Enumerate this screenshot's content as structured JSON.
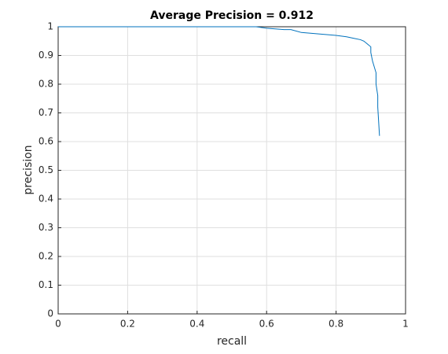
{
  "chart_data": {
    "type": "line",
    "title": "Average Precision = 0.912",
    "x_label": "recall",
    "y_label": "precision",
    "x": [
      0,
      0.05,
      0.1,
      0.2,
      0.3,
      0.4,
      0.5,
      0.57,
      0.6,
      0.65,
      0.67,
      0.7,
      0.75,
      0.8,
      0.83,
      0.85,
      0.87,
      0.88,
      0.89,
      0.9,
      0.9,
      0.905,
      0.91,
      0.915,
      0.915,
      0.92,
      0.92,
      0.925
    ],
    "values": [
      1,
      1,
      1,
      1,
      1,
      1,
      1,
      1,
      0.995,
      0.99,
      0.99,
      0.98,
      0.975,
      0.97,
      0.965,
      0.96,
      0.955,
      0.95,
      0.94,
      0.93,
      0.91,
      0.88,
      0.86,
      0.84,
      0.8,
      0.76,
      0.72,
      0.62
    ],
    "color": "#0072bd",
    "xlim": [
      0,
      1
    ],
    "ylim": [
      0,
      1
    ],
    "xticks": [
      0,
      0.2,
      0.4,
      0.6,
      0.8,
      1
    ],
    "yticks": [
      0,
      0.1,
      0.2,
      0.3,
      0.4,
      0.5,
      0.6,
      0.7,
      0.8,
      0.9,
      1
    ],
    "grid": true
  }
}
